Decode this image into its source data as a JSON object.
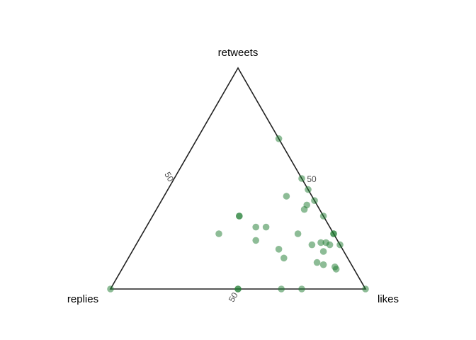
{
  "chart_data": {
    "type": "scatter",
    "subtype": "ternary",
    "title": "",
    "axes": {
      "top": {
        "label": "retweets",
        "tick_labels": [
          "50"
        ]
      },
      "left": {
        "label": "replies",
        "tick_labels": [
          "50"
        ]
      },
      "right": {
        "label": "likes",
        "tick_labels": [
          "50"
        ]
      }
    },
    "range": [
      0,
      100
    ],
    "grid": false,
    "legend": "none",
    "marker_color": "#1b7a2e",
    "marker_opacity": 0.5,
    "points": [
      {
        "retweets": 68,
        "replies": 0,
        "likes": 32
      },
      {
        "retweets": 50,
        "replies": 0,
        "likes": 50
      },
      {
        "retweets": 45,
        "replies": 0,
        "likes": 55
      },
      {
        "retweets": 40,
        "replies": 0,
        "likes": 60
      },
      {
        "retweets": 33,
        "replies": 0,
        "likes": 67
      },
      {
        "retweets": 25,
        "replies": 0,
        "likes": 75
      },
      {
        "retweets": 25,
        "replies": 0,
        "likes": 75
      },
      {
        "retweets": 20,
        "replies": 0,
        "likes": 80
      },
      {
        "retweets": 0,
        "replies": 0,
        "likes": 100
      },
      {
        "retweets": 42,
        "replies": 10,
        "likes": 48
      },
      {
        "retweets": 36,
        "replies": 6,
        "likes": 58
      },
      {
        "retweets": 38,
        "replies": 4,
        "likes": 58
      },
      {
        "retweets": 33,
        "replies": 33,
        "likes": 34
      },
      {
        "retweets": 33,
        "replies": 33,
        "likes": 34
      },
      {
        "retweets": 25,
        "replies": 45,
        "likes": 30
      },
      {
        "retweets": 28,
        "replies": 29,
        "likes": 43
      },
      {
        "retweets": 28,
        "replies": 25,
        "likes": 47
      },
      {
        "retweets": 22,
        "replies": 32,
        "likes": 46
      },
      {
        "retweets": 18,
        "replies": 25,
        "likes": 57
      },
      {
        "retweets": 14,
        "replies": 25,
        "likes": 61
      },
      {
        "retweets": 25,
        "replies": 14,
        "likes": 61
      },
      {
        "retweets": 20,
        "replies": 11,
        "likes": 69
      },
      {
        "retweets": 21,
        "replies": 7,
        "likes": 72
      },
      {
        "retweets": 21,
        "replies": 5,
        "likes": 74
      },
      {
        "retweets": 20,
        "replies": 4,
        "likes": 76
      },
      {
        "retweets": 17,
        "replies": 8,
        "likes": 75
      },
      {
        "retweets": 12,
        "replies": 13,
        "likes": 75
      },
      {
        "retweets": 11,
        "replies": 11,
        "likes": 78
      },
      {
        "retweets": 10,
        "replies": 7,
        "likes": 83
      },
      {
        "retweets": 9,
        "replies": 7,
        "likes": 84
      },
      {
        "retweets": 0,
        "replies": 50,
        "likes": 50
      },
      {
        "retweets": 0,
        "replies": 50,
        "likes": 50
      },
      {
        "retweets": 0,
        "replies": 33,
        "likes": 67
      },
      {
        "retweets": 0,
        "replies": 25,
        "likes": 75
      },
      {
        "retweets": 0,
        "replies": 100,
        "likes": 0
      }
    ]
  }
}
